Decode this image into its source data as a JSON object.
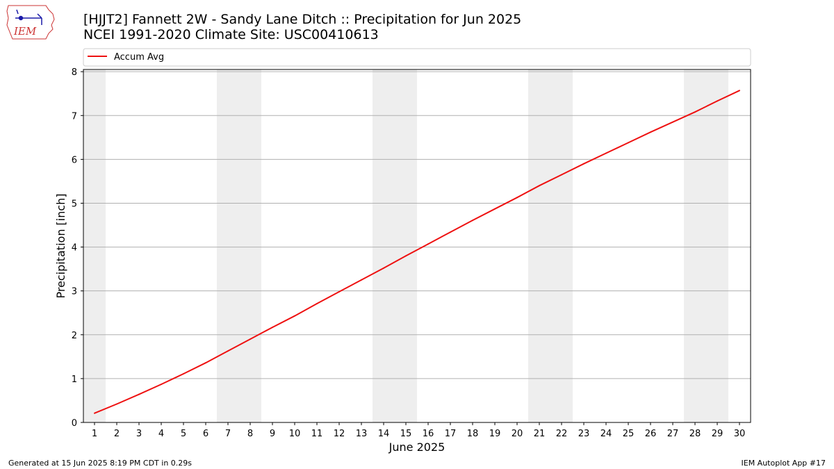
{
  "header": {
    "title_line1": "[HJJT2] Fannett 2W - Sandy Lane Ditch :: Precipitation for Jun 2025",
    "title_line2": "NCEI 1991-2020 Climate Site: USC00410613",
    "logo_text": "IEM"
  },
  "footer": {
    "generated": "Generated at 15 Jun 2025 8:19 PM CDT in 0.29s",
    "app": "IEM Autoplot App #17"
  },
  "colors": {
    "line": "#ee1111",
    "weekend_band": "#eeeeee",
    "grid": "#b0b0b0",
    "logo_outline": "#cc3333",
    "logo_ink": "#1a1aa8"
  },
  "chart_data": {
    "type": "line",
    "xlabel": "June 2025",
    "ylabel": "Precipitation [inch]",
    "xlim": [
      0.5,
      30.5
    ],
    "ylim": [
      0,
      8.05
    ],
    "x_ticks": [
      1,
      2,
      3,
      4,
      5,
      6,
      7,
      8,
      9,
      10,
      11,
      12,
      13,
      14,
      15,
      16,
      17,
      18,
      19,
      20,
      21,
      22,
      23,
      24,
      25,
      26,
      27,
      28,
      29,
      30
    ],
    "y_ticks": [
      0,
      1,
      2,
      3,
      4,
      5,
      6,
      7,
      8
    ],
    "grid": "horizontal",
    "legend": {
      "placement": "top",
      "entries": [
        "Accum Avg"
      ]
    },
    "weekend_bands": [
      [
        0.5,
        1.5
      ],
      [
        6.5,
        8.5
      ],
      [
        13.5,
        15.5
      ],
      [
        20.5,
        22.5
      ],
      [
        27.5,
        29.5
      ]
    ],
    "series": [
      {
        "name": "Accum Avg",
        "x": [
          1,
          2,
          3,
          4,
          5,
          6,
          7,
          8,
          9,
          10,
          11,
          12,
          13,
          14,
          15,
          16,
          17,
          18,
          19,
          20,
          21,
          22,
          23,
          24,
          25,
          26,
          27,
          28,
          29,
          30
        ],
        "y": [
          0.21,
          0.42,
          0.64,
          0.87,
          1.11,
          1.36,
          1.63,
          1.9,
          2.17,
          2.43,
          2.71,
          2.98,
          3.25,
          3.52,
          3.8,
          4.07,
          4.34,
          4.61,
          4.87,
          5.13,
          5.4,
          5.65,
          5.9,
          6.14,
          6.38,
          6.62,
          6.85,
          7.08,
          7.33,
          7.57
        ]
      }
    ]
  }
}
